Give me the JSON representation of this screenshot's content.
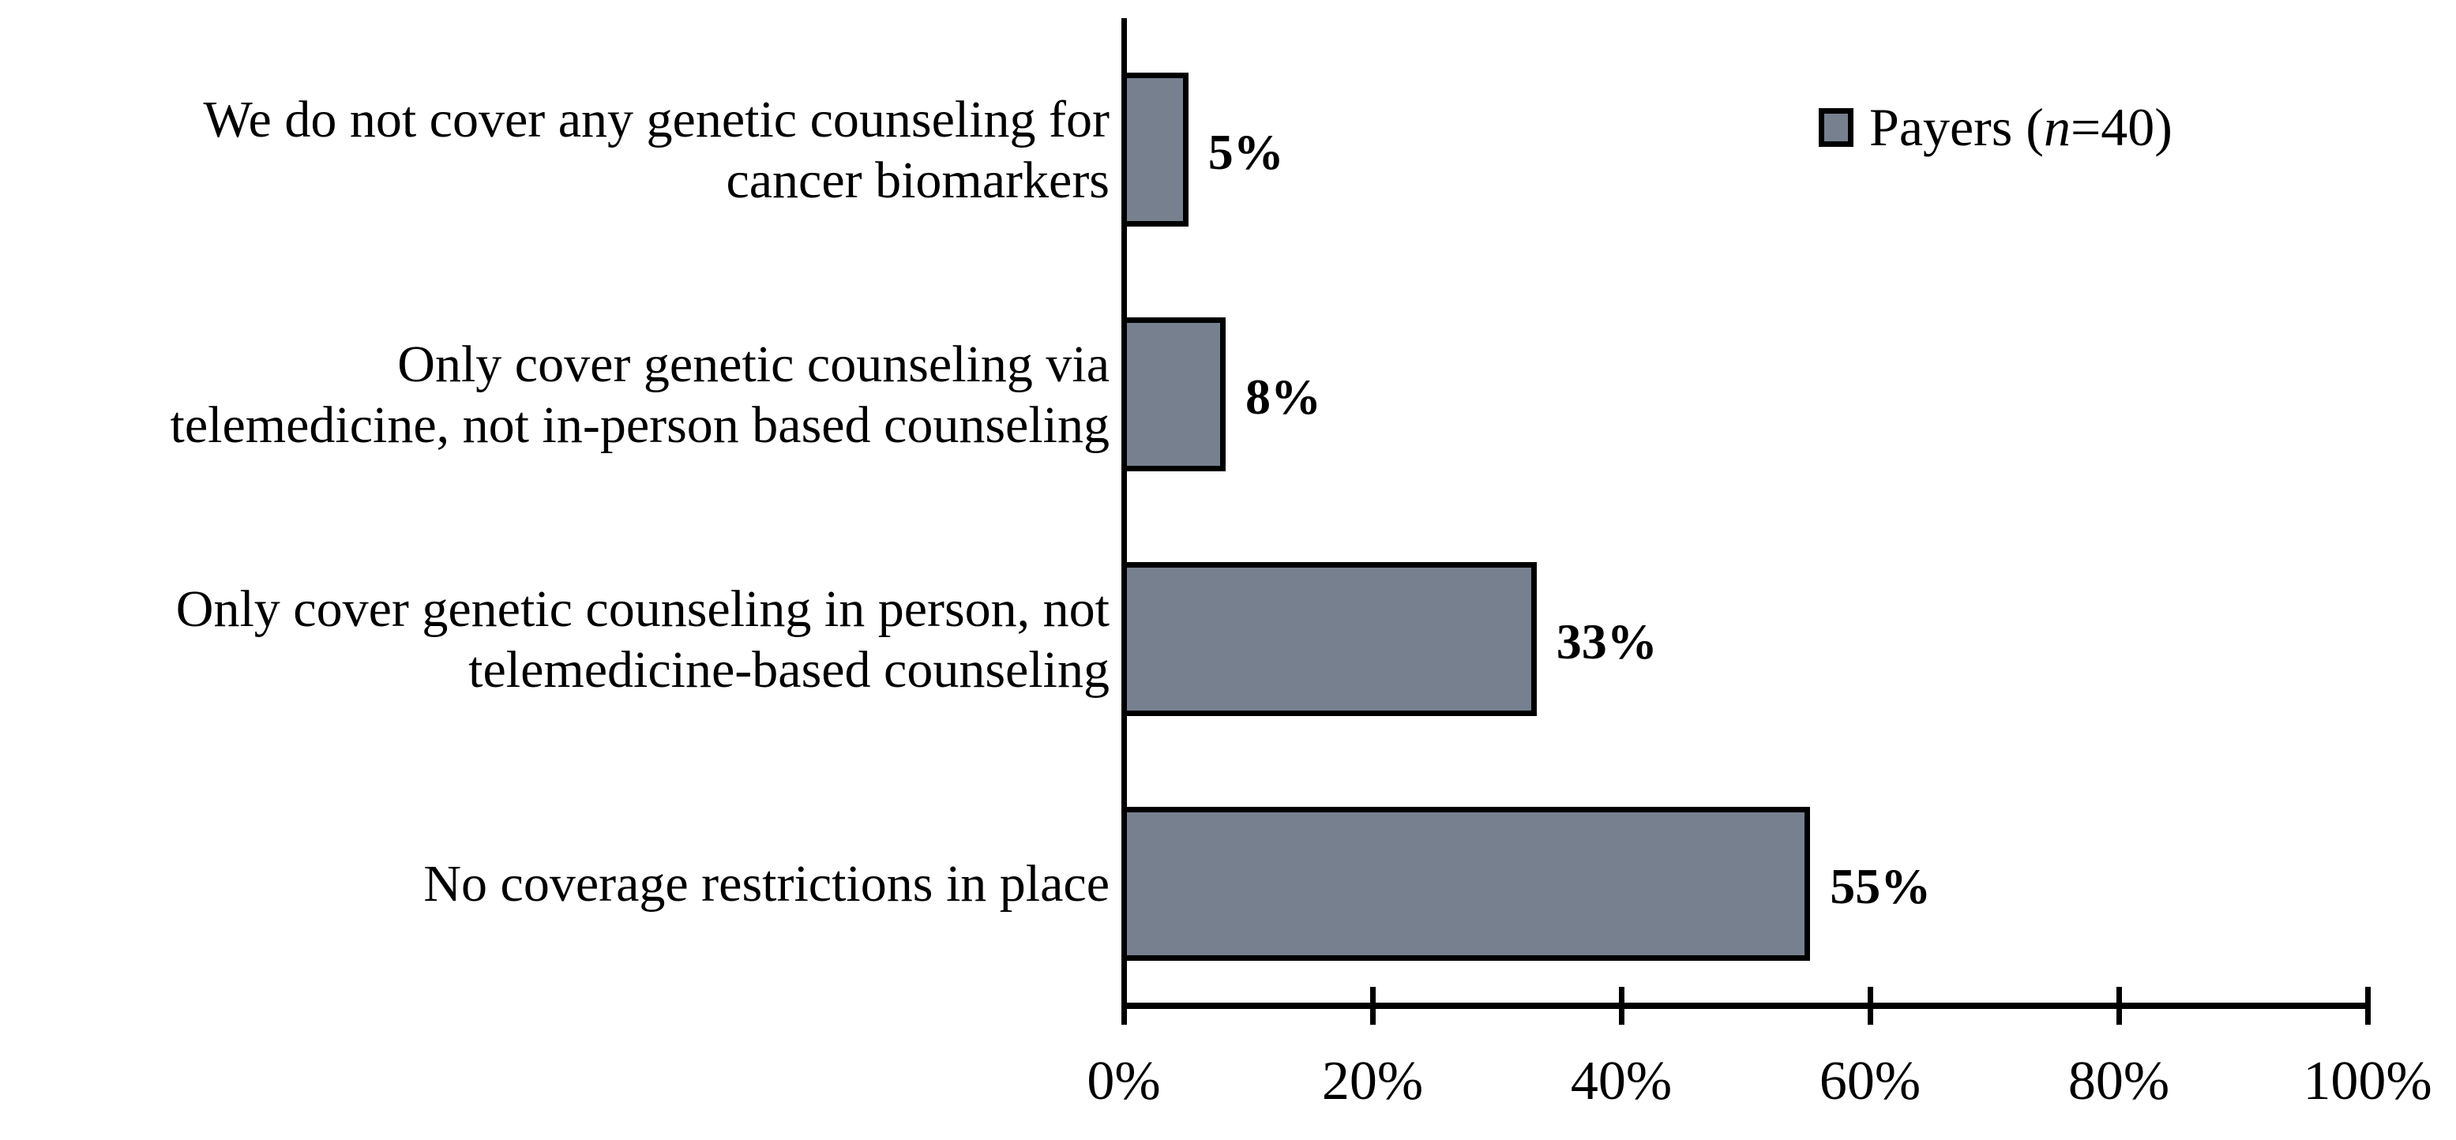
{
  "chart_data": {
    "type": "bar",
    "orientation": "horizontal",
    "title": "",
    "xlabel": "",
    "ylabel": "",
    "xlim": [
      0,
      100
    ],
    "grid": false,
    "legend_position": "top-right",
    "categories": [
      "We do not cover any genetic counseling for cancer biomarkers",
      "Only cover genetic counseling via telemedicine, not in-person based counseling",
      "Only cover genetic counseling in person, not telemedicine-based counseling",
      "No coverage restrictions in place"
    ],
    "category_label_lines": [
      [
        "We do not cover any genetic counseling for",
        "cancer biomarkers"
      ],
      [
        "Only cover genetic counseling via",
        "telemedicine, not in-person based counseling"
      ],
      [
        "Only cover genetic counseling in person, not",
        "telemedicine-based counseling"
      ],
      [
        "No coverage restrictions in place"
      ]
    ],
    "series": [
      {
        "name": "Payers (n=40)",
        "values": [
          5,
          8,
          33,
          55
        ]
      }
    ],
    "data_labels": [
      "5%",
      "8%",
      "33%",
      "55%"
    ],
    "x_ticks": [
      "0%",
      "20%",
      "40%",
      "60%",
      "80%",
      "100%"
    ],
    "x_tick_values": [
      0,
      20,
      40,
      60,
      80,
      100
    ],
    "bar_color": "#76808F",
    "bar_border_color": "#000000",
    "axis_color": "#000000",
    "text_color": "#000000"
  },
  "legend": {
    "prefix": "Payers (",
    "n_italic": "n",
    "suffix": "=40)"
  }
}
